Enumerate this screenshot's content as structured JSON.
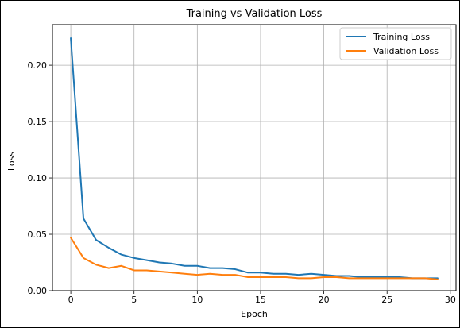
{
  "chart_data": {
    "type": "line",
    "title": "Training vs Validation Loss",
    "xlabel": "Epoch",
    "ylabel": "Loss",
    "xlim": [
      -1.45,
      30.45
    ],
    "ylim": [
      0,
      0.236
    ],
    "xticks": [
      0,
      5,
      10,
      15,
      20,
      25,
      30
    ],
    "yticks": [
      0.0,
      0.05,
      0.1,
      0.15,
      0.2
    ],
    "ytick_labels": [
      "0.00",
      "0.05",
      "0.10",
      "0.15",
      "0.20"
    ],
    "grid": true,
    "legend_position": "top-right",
    "x": [
      0,
      1,
      2,
      3,
      4,
      5,
      6,
      7,
      8,
      9,
      10,
      11,
      12,
      13,
      14,
      15,
      16,
      17,
      18,
      19,
      20,
      21,
      22,
      23,
      24,
      25,
      26,
      27,
      28,
      29
    ],
    "series": [
      {
        "name": "Training Loss",
        "color": "#1f77b4",
        "values": [
          0.224,
          0.064,
          0.045,
          0.038,
          0.032,
          0.029,
          0.027,
          0.025,
          0.024,
          0.022,
          0.022,
          0.02,
          0.02,
          0.019,
          0.016,
          0.016,
          0.015,
          0.015,
          0.014,
          0.015,
          0.014,
          0.013,
          0.013,
          0.012,
          0.012,
          0.012,
          0.012,
          0.011,
          0.011,
          0.011
        ]
      },
      {
        "name": "Validation Loss",
        "color": "#ff7f0e",
        "values": [
          0.047,
          0.029,
          0.023,
          0.02,
          0.022,
          0.018,
          0.018,
          0.017,
          0.016,
          0.015,
          0.014,
          0.015,
          0.014,
          0.014,
          0.012,
          0.012,
          0.012,
          0.012,
          0.011,
          0.011,
          0.012,
          0.012,
          0.011,
          0.011,
          0.011,
          0.011,
          0.011,
          0.011,
          0.011,
          0.01
        ]
      }
    ]
  }
}
